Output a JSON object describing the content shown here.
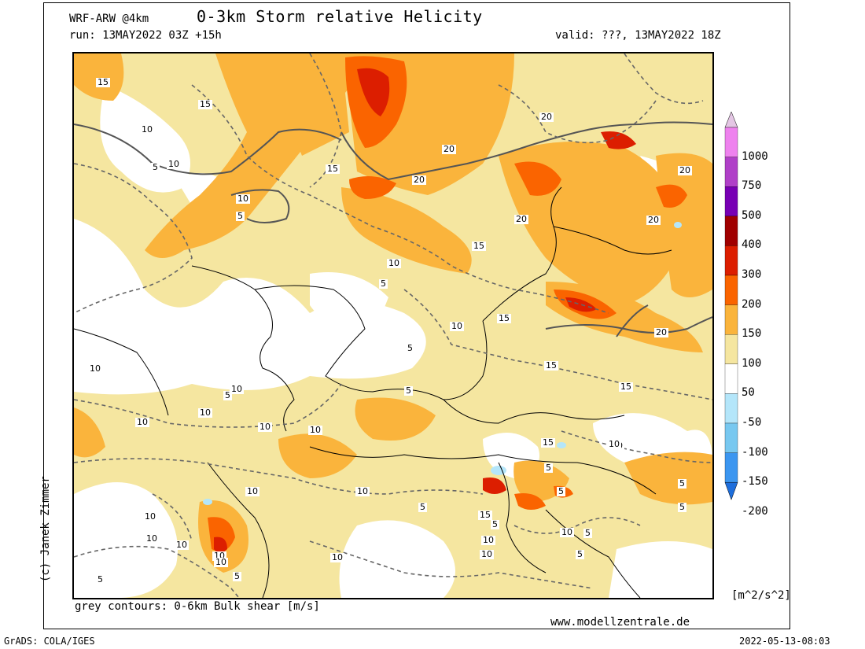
{
  "header": {
    "model": "WRF-ARW @4km",
    "title": "0-3km Storm relative Helicity",
    "run": "run: 13MAY2022 03Z +15h",
    "valid": "valid: ???, 13MAY2022 18Z"
  },
  "colorbar": {
    "unit": "[m^2/s^2]",
    "labels": [
      "1000",
      "750",
      "500",
      "400",
      "300",
      "200",
      "150",
      "100",
      "50",
      "-50",
      "-100",
      "-150",
      "-200"
    ],
    "colors": [
      "#e4c6e4",
      "#ee82ee",
      "#b040c8",
      "#7800b4",
      "#a00000",
      "#dc1e00",
      "#fa6400",
      "#fab43c",
      "#f5e6a0",
      "#ffffff",
      "#b4e6fa",
      "#78c8f0",
      "#3c96f0",
      "#1e6edc"
    ]
  },
  "map": {
    "shading_colors": {
      "light": "#f5e6a0",
      "mid": "#fab43c",
      "orange": "#fa6400",
      "red": "#dc1e00",
      "blue": "#b4e6fa"
    },
    "contour_labels": [
      "15",
      "15",
      "10",
      "5",
      "10",
      "10",
      "5",
      "15",
      "20",
      "10",
      "20",
      "20",
      "5",
      "20",
      "20",
      "15",
      "15",
      "10",
      "5",
      "20",
      "5",
      "10",
      "15",
      "5",
      "10",
      "20",
      "10",
      "5",
      "15",
      "10",
      "10",
      "10",
      "5",
      "5",
      "10",
      "10",
      "10",
      "10",
      "15",
      "10",
      "5",
      "10",
      "5",
      "5",
      "10",
      "10",
      "10",
      "5",
      "15",
      "10",
      "10",
      "5",
      "5",
      "10",
      "5",
      "10"
    ]
  },
  "footer": {
    "contours_note": "grey contours: 0-6km Bulk shear [m/s]",
    "website": "www.modellzentrale.de",
    "software": "GrADS: COLA/IGES",
    "timestamp": "2022-05-13-08:03",
    "copyright": "(c) Janek Zimmer"
  }
}
